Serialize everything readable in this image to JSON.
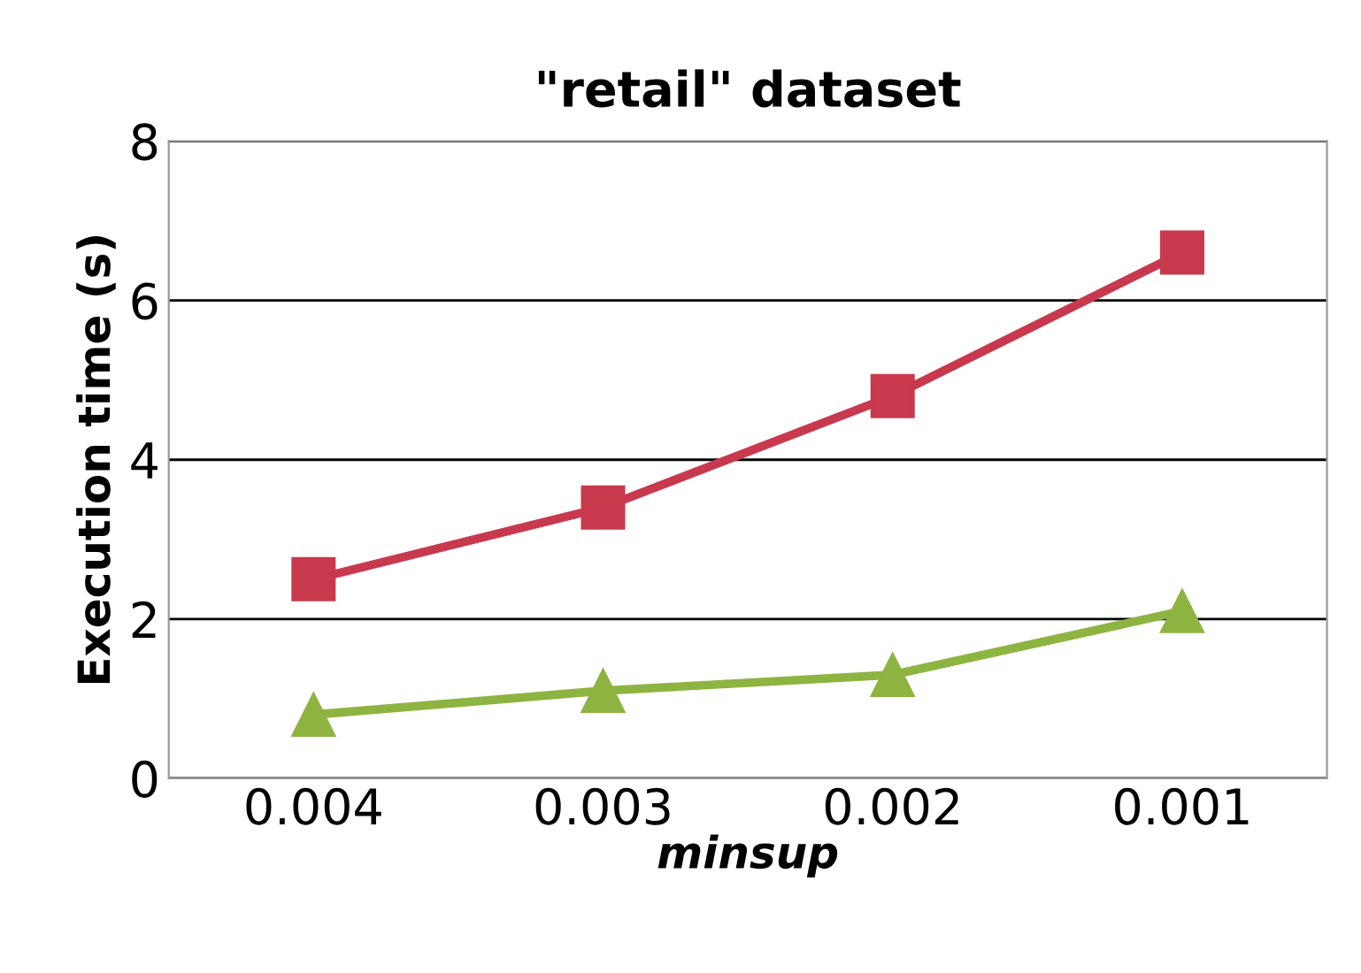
{
  "chart_data": {
    "type": "line",
    "title": "\"retail\" dataset",
    "xlabel": "minsup",
    "ylabel": "Execution time (s)",
    "categories": [
      "0.004",
      "0.003",
      "0.002",
      "0.001"
    ],
    "series": [
      {
        "color": "#c8394d",
        "marker": "square",
        "values": [
          2.5,
          3.4,
          4.8,
          6.6
        ]
      },
      {
        "color": "#8db441",
        "marker": "triangle",
        "values": [
          0.8,
          1.1,
          1.3,
          2.1
        ]
      }
    ],
    "ylim": [
      0,
      8
    ],
    "yticks": [
      0,
      2,
      4,
      6,
      8
    ],
    "grid": "y",
    "legend": false,
    "line_style": "solid"
  }
}
